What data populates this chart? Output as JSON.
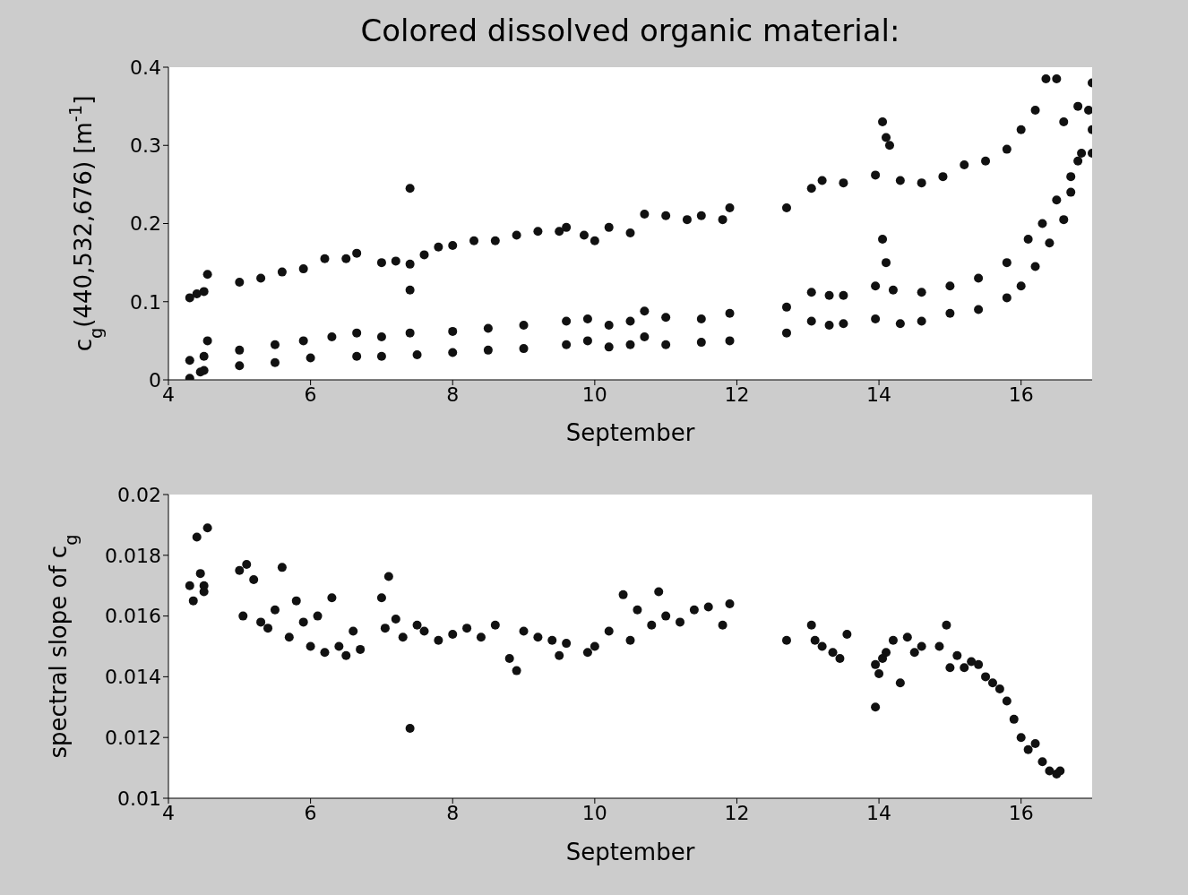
{
  "chart_data": [
    {
      "type": "scatter",
      "title": "Colored dissolved organic material:",
      "xlabel": "September",
      "ylabel": "c$_{g}$(440,532,676) [m$^{-1}$]",
      "xlim": [
        4,
        17
      ],
      "xticks": [
        4,
        6,
        8,
        10,
        12,
        14,
        16
      ],
      "ylim": [
        0,
        0.4
      ],
      "yticks": [
        0,
        0.1,
        0.2,
        0.3,
        0.4
      ],
      "marker": "circle",
      "series": [
        {
          "color": "#111111",
          "x": [
            4.3,
            4.4,
            4.5,
            4.55,
            5.0,
            5.3,
            5.6,
            5.9,
            6.2,
            6.5,
            6.65,
            7.0,
            7.2,
            7.4,
            7.4,
            7.6,
            7.8,
            8.0,
            8.3,
            8.6,
            8.9,
            9.2,
            9.5,
            9.6,
            9.85,
            10.0,
            10.2,
            10.5,
            10.7,
            11.0,
            11.3,
            11.5,
            11.8,
            11.9,
            12.7,
            13.05,
            13.2,
            13.5,
            13.95,
            14.05,
            14.1,
            14.15,
            14.3,
            14.6,
            14.9,
            15.2,
            15.5,
            15.8,
            16.0,
            16.2,
            16.35,
            16.5,
            16.6,
            16.8,
            16.95,
            17.0,
            17.0
          ],
          "values": [
            0.105,
            0.11,
            0.113,
            0.135,
            0.125,
            0.13,
            0.138,
            0.142,
            0.155,
            0.155,
            0.162,
            0.15,
            0.152,
            0.245,
            0.148,
            0.16,
            0.17,
            0.172,
            0.178,
            0.178,
            0.185,
            0.19,
            0.19,
            0.195,
            0.185,
            0.178,
            0.195,
            0.188,
            0.212,
            0.21,
            0.205,
            0.21,
            0.205,
            0.22,
            0.22,
            0.245,
            0.255,
            0.252,
            0.262,
            0.33,
            0.31,
            0.3,
            0.255,
            0.252,
            0.26,
            0.275,
            0.28,
            0.295,
            0.32,
            0.345,
            0.385,
            0.385,
            0.33,
            0.35,
            0.345,
            0.38,
            0.32
          ]
        },
        {
          "color": "#111111",
          "x": [
            4.3,
            4.5,
            4.55,
            5.0,
            5.5,
            5.9,
            6.3,
            6.65,
            7.0,
            7.4,
            7.4,
            8.0,
            8.5,
            9.0,
            9.6,
            9.9,
            10.2,
            10.5,
            10.7,
            11.0,
            11.5,
            11.9,
            12.7,
            13.05,
            13.3,
            13.5,
            13.95,
            14.05,
            14.1,
            14.2,
            14.6,
            15.0,
            15.4,
            15.8,
            16.1,
            16.3,
            16.5,
            16.7,
            16.8,
            17.0
          ],
          "values": [
            0.025,
            0.03,
            0.05,
            0.038,
            0.045,
            0.05,
            0.055,
            0.06,
            0.055,
            0.115,
            0.06,
            0.062,
            0.066,
            0.07,
            0.075,
            0.078,
            0.07,
            0.075,
            0.088,
            0.08,
            0.078,
            0.085,
            0.093,
            0.112,
            0.108,
            0.108,
            0.12,
            0.18,
            0.15,
            0.115,
            0.112,
            0.12,
            0.13,
            0.15,
            0.18,
            0.2,
            0.23,
            0.26,
            0.28,
            0.29
          ]
        },
        {
          "color": "#111111",
          "x": [
            4.3,
            4.45,
            4.5,
            5.0,
            5.5,
            6.0,
            6.65,
            7.0,
            7.5,
            8.0,
            8.5,
            9.0,
            9.6,
            9.9,
            10.2,
            10.5,
            10.7,
            11.0,
            11.5,
            11.9,
            12.7,
            13.05,
            13.3,
            13.5,
            13.95,
            14.3,
            14.6,
            15.0,
            15.4,
            15.8,
            16.0,
            16.2,
            16.4,
            16.6,
            16.7,
            16.85
          ],
          "values": [
            0.002,
            0.01,
            0.012,
            0.018,
            0.022,
            0.028,
            0.03,
            0.03,
            0.032,
            0.035,
            0.038,
            0.04,
            0.045,
            0.05,
            0.042,
            0.045,
            0.055,
            0.045,
            0.048,
            0.05,
            0.06,
            0.075,
            0.07,
            0.072,
            0.078,
            0.072,
            0.075,
            0.085,
            0.09,
            0.105,
            0.12,
            0.145,
            0.175,
            0.205,
            0.24,
            0.29
          ]
        }
      ]
    },
    {
      "type": "scatter",
      "xlabel": "September",
      "ylabel": "spectral slope of c$_{g}$",
      "xlim": [
        4,
        17
      ],
      "xticks": [
        4,
        6,
        8,
        10,
        12,
        14,
        16
      ],
      "ylim": [
        0.01,
        0.02
      ],
      "yticks": [
        0.01,
        0.012,
        0.014,
        0.016,
        0.018,
        0.02
      ],
      "marker": "circle",
      "series": [
        {
          "color": "#111111",
          "x": [
            4.3,
            4.35,
            4.4,
            4.45,
            4.5,
            4.55,
            4.5,
            5.0,
            5.05,
            5.1,
            5.2,
            5.3,
            5.4,
            5.6,
            5.5,
            5.7,
            5.8,
            5.9,
            6.0,
            6.1,
            6.2,
            6.3,
            6.4,
            6.5,
            6.6,
            6.7,
            7.0,
            7.05,
            7.1,
            7.2,
            7.3,
            7.4,
            7.5,
            7.6,
            7.8,
            8.0,
            8.2,
            8.4,
            8.6,
            8.8,
            8.9,
            9.0,
            9.2,
            9.4,
            9.5,
            9.6,
            9.9,
            10.0,
            10.2,
            10.4,
            10.5,
            10.6,
            10.8,
            10.9,
            11.0,
            11.2,
            11.4,
            11.6,
            11.8,
            11.9,
            12.7,
            13.05,
            13.1,
            13.2,
            13.35,
            13.45,
            13.55,
            13.95,
            13.95,
            14.0,
            14.05,
            14.1,
            14.2,
            14.3,
            14.4,
            14.5,
            14.6,
            14.85,
            14.95,
            15.0,
            15.1,
            15.2,
            15.3,
            15.4,
            15.5,
            15.6,
            15.7,
            15.8,
            15.9,
            16.0,
            16.1,
            16.2,
            16.3,
            16.4,
            16.5,
            16.55
          ],
          "values": [
            0.017,
            0.0165,
            0.0186,
            0.0174,
            0.0168,
            0.0189,
            0.017,
            0.0175,
            0.016,
            0.0177,
            0.0172,
            0.0158,
            0.0156,
            0.0176,
            0.0162,
            0.0153,
            0.0165,
            0.0158,
            0.015,
            0.016,
            0.0148,
            0.0166,
            0.015,
            0.0147,
            0.0155,
            0.0149,
            0.0166,
            0.0156,
            0.0173,
            0.0159,
            0.0153,
            0.0123,
            0.0157,
            0.0155,
            0.0152,
            0.0154,
            0.0156,
            0.0153,
            0.0157,
            0.0146,
            0.0142,
            0.0155,
            0.0153,
            0.0152,
            0.0147,
            0.0151,
            0.0148,
            0.015,
            0.0155,
            0.0167,
            0.0152,
            0.0162,
            0.0157,
            0.0168,
            0.016,
            0.0158,
            0.0162,
            0.0163,
            0.0157,
            0.0164,
            0.0152,
            0.0157,
            0.0152,
            0.015,
            0.0148,
            0.0146,
            0.0154,
            0.0144,
            0.013,
            0.0141,
            0.0146,
            0.0148,
            0.0152,
            0.0138,
            0.0153,
            0.0148,
            0.015,
            0.015,
            0.0157,
            0.0143,
            0.0147,
            0.0143,
            0.0145,
            0.0144,
            0.014,
            0.0138,
            0.0136,
            0.0132,
            0.0126,
            0.012,
            0.0116,
            0.0118,
            0.0112,
            0.0109,
            0.0108,
            0.0109
          ]
        }
      ]
    }
  ]
}
